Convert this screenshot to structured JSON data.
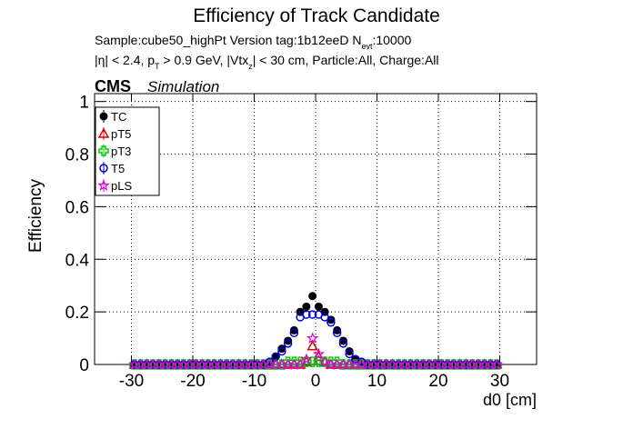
{
  "chart_data": {
    "type": "scatter",
    "title": "Efficiency of Track Candidate",
    "subtitle_lines": [
      [
        "Sample:cube50_highPt   Version tag:1b12eeD  N",
        "evt",
        ":10000"
      ],
      [
        "|η| < 2.4, p",
        "T",
        " > 0.9 GeV, |Vtx",
        "z",
        "| < 30 cm, Particle:All, Charge:All"
      ]
    ],
    "cms_label": "CMS",
    "cms_sublabel": "Simulation",
    "x_label": "d0 [cm]",
    "y_label": "Efficiency",
    "xlim": [
      -36,
      36
    ],
    "ylim": [
      0,
      1.03
    ],
    "xticks": [
      -30,
      -20,
      -10,
      0,
      10,
      20,
      30
    ],
    "yticks": [
      0,
      0.2,
      0.4,
      0.6,
      0.8,
      1
    ],
    "grid": true,
    "legend": "upper left",
    "x": [
      -29.5,
      -28.5,
      -27.5,
      -26.5,
      -25.5,
      -24.5,
      -23.5,
      -22.5,
      -21.5,
      -20.5,
      -19.5,
      -18.5,
      -17.5,
      -16.5,
      -15.5,
      -14.5,
      -13.5,
      -12.5,
      -11.5,
      -10.5,
      -9.5,
      -8.5,
      -7.5,
      -6.5,
      -5.5,
      -4.5,
      -3.5,
      -2.5,
      -1.5,
      -0.5,
      0.5,
      1.5,
      2.5,
      3.5,
      4.5,
      5.5,
      6.5,
      7.5,
      8.5,
      9.5,
      10.5,
      11.5,
      12.5,
      13.5,
      14.5,
      15.5,
      16.5,
      17.5,
      18.5,
      19.5,
      20.5,
      21.5,
      22.5,
      23.5,
      24.5,
      25.5,
      26.5,
      27.5,
      28.5,
      29.5
    ],
    "series": [
      {
        "name": "TC",
        "color": "#000000",
        "marker": "filled-circle",
        "values": [
          0,
          0,
          0,
          0,
          0,
          0,
          0,
          0,
          0,
          0,
          0,
          0,
          0,
          0,
          0,
          0,
          0,
          0,
          0,
          0,
          0,
          0,
          0.01,
          0.03,
          0.06,
          0.09,
          0.13,
          0.2,
          0.22,
          0.26,
          0.22,
          0.2,
          0.17,
          0.13,
          0.09,
          0.05,
          0.02,
          0.01,
          0,
          0,
          0,
          0,
          0,
          0,
          0,
          0,
          0,
          0,
          0,
          0,
          0,
          0,
          0,
          0,
          0,
          0,
          0,
          0,
          0,
          0
        ]
      },
      {
        "name": "pT5",
        "color": "#e00000",
        "marker": "open-triangle",
        "values": [
          0,
          0,
          0,
          0,
          0,
          0,
          0,
          0,
          0,
          0,
          0,
          0,
          0,
          0,
          0,
          0,
          0,
          0,
          0,
          0,
          0,
          0,
          0,
          0,
          0,
          0,
          0,
          0,
          0.01,
          0.07,
          0.03,
          0.01,
          0,
          0,
          0,
          0,
          0,
          0,
          0,
          0,
          0,
          0,
          0,
          0,
          0,
          0,
          0,
          0,
          0,
          0,
          0,
          0,
          0,
          0,
          0,
          0,
          0,
          0,
          0,
          0
        ]
      },
      {
        "name": "pT3",
        "color": "#00cc00",
        "marker": "open-cross",
        "values": [
          0,
          0,
          0,
          0,
          0,
          0,
          0,
          0,
          0,
          0,
          0,
          0,
          0,
          0,
          0,
          0,
          0,
          0,
          0,
          0,
          0,
          0,
          0,
          0,
          0,
          0.01,
          0.01,
          0.01,
          0.01,
          0.01,
          0.01,
          0.01,
          0.01,
          0.01,
          0,
          0,
          0,
          0,
          0,
          0,
          0,
          0,
          0,
          0,
          0,
          0,
          0,
          0,
          0,
          0,
          0,
          0,
          0,
          0,
          0,
          0,
          0,
          0,
          0,
          0
        ]
      },
      {
        "name": "T5",
        "color": "#0000dd",
        "marker": "open-circle",
        "values": [
          0,
          0,
          0,
          0,
          0,
          0,
          0,
          0,
          0,
          0,
          0,
          0,
          0,
          0,
          0,
          0,
          0,
          0,
          0,
          0,
          0,
          0,
          0.01,
          0.03,
          0.05,
          0.08,
          0.12,
          0.18,
          0.19,
          0.19,
          0.19,
          0.18,
          0.16,
          0.12,
          0.08,
          0.04,
          0.02,
          0.01,
          0,
          0,
          0,
          0,
          0,
          0,
          0,
          0,
          0,
          0,
          0,
          0,
          0,
          0,
          0,
          0,
          0,
          0,
          0,
          0,
          0,
          0
        ]
      },
      {
        "name": "pLS",
        "color": "#dd00dd",
        "marker": "star",
        "values": [
          0,
          0,
          0,
          0,
          0,
          0,
          0,
          0,
          0,
          0,
          0,
          0,
          0,
          0,
          0,
          0,
          0,
          0,
          0,
          0,
          0,
          0,
          0,
          0,
          0,
          0,
          0,
          0,
          0.02,
          0.1,
          0.04,
          0.01,
          0,
          0,
          0,
          0,
          0,
          0,
          0,
          0,
          0,
          0,
          0,
          0,
          0,
          0,
          0,
          0,
          0,
          0,
          0,
          0,
          0,
          0,
          0,
          0,
          0,
          0,
          0,
          0
        ]
      }
    ]
  }
}
